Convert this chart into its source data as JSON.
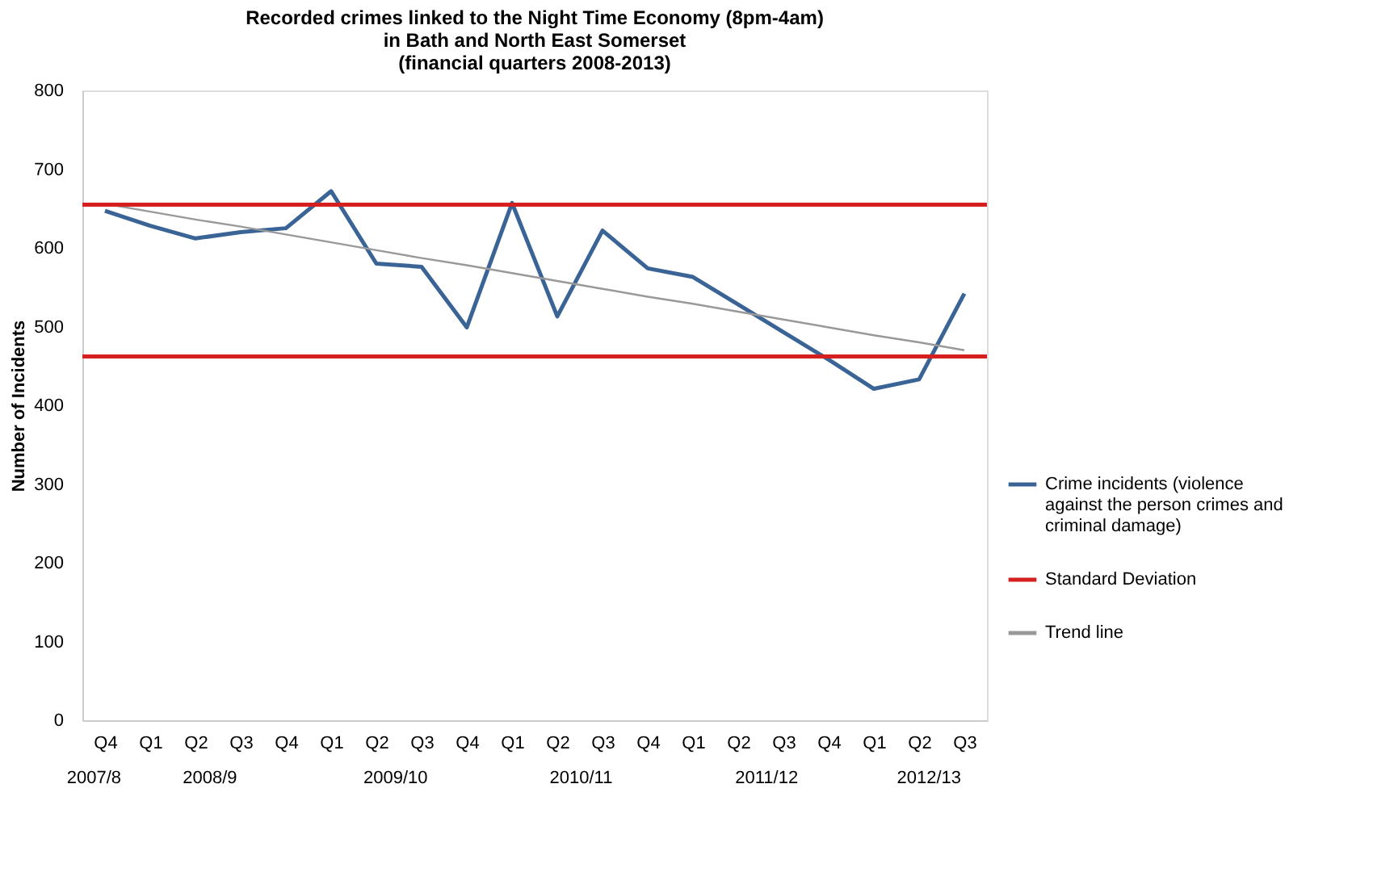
{
  "chart_data": {
    "type": "line",
    "title": [
      "Recorded crimes linked to the Night Time Economy (8pm-4am)",
      "in Bath and North East Somerset",
      "(financial quarters 2008-2013)"
    ],
    "ylabel": "Number of Incidents",
    "categories": [
      "Q4",
      "Q1",
      "Q2",
      "Q3",
      "Q4",
      "Q1",
      "Q2",
      "Q3",
      "Q4",
      "Q1",
      "Q2",
      "Q3",
      "Q4",
      "Q1",
      "Q2",
      "Q3",
      "Q4",
      "Q1",
      "Q2",
      "Q3"
    ],
    "annotations": [
      "2007/8",
      "2008/9",
      "2009/10",
      "2010/11",
      "2011/12",
      "2012/13"
    ],
    "series": [
      {
        "name": "Crime incidents (violence against the person crimes and criminal damage)",
        "color": "#3a6496",
        "values": [
          647,
          628,
          612,
          620,
          625,
          672,
          580,
          576,
          499,
          657,
          513,
          622,
          574,
          563,
          528,
          493,
          458,
          421,
          433,
          542
        ]
      },
      {
        "name": "Trend line",
        "color": "#999999",
        "type": "line",
        "values": [
          656,
          646,
          636,
          627,
          617,
          607,
          597,
          587,
          578,
          568,
          558,
          548,
          538,
          529,
          519,
          509,
          499,
          489,
          480,
          470
        ]
      }
    ],
    "ref_lines": [
      {
        "axis": "y",
        "value": 655,
        "label": "Standard Deviation",
        "color": "#d62020"
      },
      {
        "axis": "y",
        "value": 462,
        "color": "#d62020"
      }
    ],
    "ylim": [
      0,
      800
    ],
    "yticks": [
      0,
      100,
      200,
      300,
      400,
      500,
      600,
      700,
      800
    ],
    "grid": false,
    "legend": "right",
    "marker": "none",
    "line_style": "solid"
  }
}
